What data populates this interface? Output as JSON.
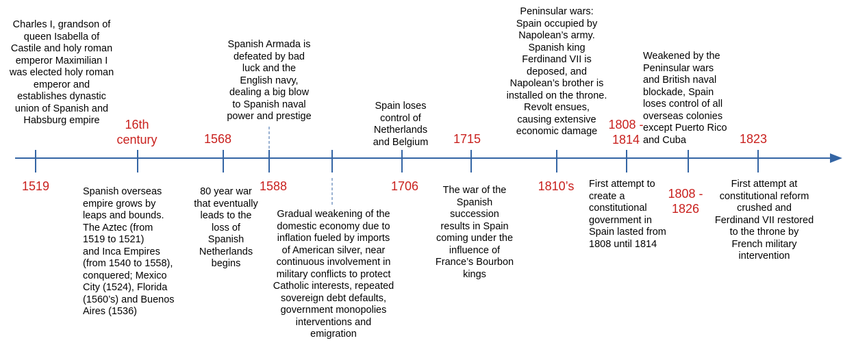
{
  "colors": {
    "axis": "#3465a4",
    "date": "#c9211e",
    "text": "#000000"
  },
  "dates": {
    "d1519": "1519",
    "d16c": "16th\ncentury",
    "d1568": "1568",
    "d1588": "1588",
    "d1706": "1706",
    "d1715": "1715",
    "d1810s": "1810’s",
    "d1808_1814": "1808 -\n1814",
    "d1808_1826": "1808 -\n1826",
    "d1823": "1823"
  },
  "events": {
    "charles": "Charles I, grandson of\nqueen Isabella of\nCastile and holy roman\nemperor Maximilian I\nwas elected holy roman\nemperor and\nestablishes dynastic\nunion of Spanish and\nHabsburg empire",
    "overseas": "Spanish overseas\nempire grows by\nleaps and bounds.\nThe Aztec (from\n1519 to 1521)\nand Inca Empires\n(from 1540 to 1558),\nconquered; Mexico\nCity (1524), Florida\n(1560’s) and Buenos\nAires (1536)",
    "armada": "Spanish Armada is\ndefeated by bad\nluck and the\nEnglish navy,\ndealing a big blow\nto Spanish naval\npower and prestige",
    "eighty_year": "80 year war\nthat eventually\nleads to the\nloss of\nSpanish\nNetherlands\nbegins",
    "weakening": "Gradual weakening of the\ndomestic economy due to\ninflation fueled by imports\nof American silver, near\ncontinuous involvement in\nmilitary conflicts to protect\nCatholic interests, repeated\nsovereign debt defaults,\ngovernment monopolies\ninterventions and\nemigration",
    "netherlands": "Spain loses\ncontrol of\nNetherlands\nand Belgium",
    "succession": "The war of the\nSpanish\nsuccession\nresults in Spain\ncoming under the\ninfluence of\nFrance’s Bourbon\nkings",
    "peninsular": "Peninsular wars:\nSpain occupied by\nNapolean’s army.\nSpanish king\nFerdinand VII is\ndeposed, and\nNapolean’s brother is\ninstalled on the throne.\nRevolt ensues,\ncausing extensive\neconomic damage",
    "weakened": "Weakened by the\nPeninsular wars\nand British naval\nblockade, Spain\nloses control of all\noverseas colonies\nexcept Puerto Rico\nand Cuba",
    "constitution": "First attempt to\ncreate a\nconstitutional\ngovernment in\nSpain lasted from\n1808 until 1814",
    "reform": "First attempt at\nconstitutional reform\ncrushed and\nFerdinand VII restored\nto the throne by\nFrench military\nintervention"
  }
}
